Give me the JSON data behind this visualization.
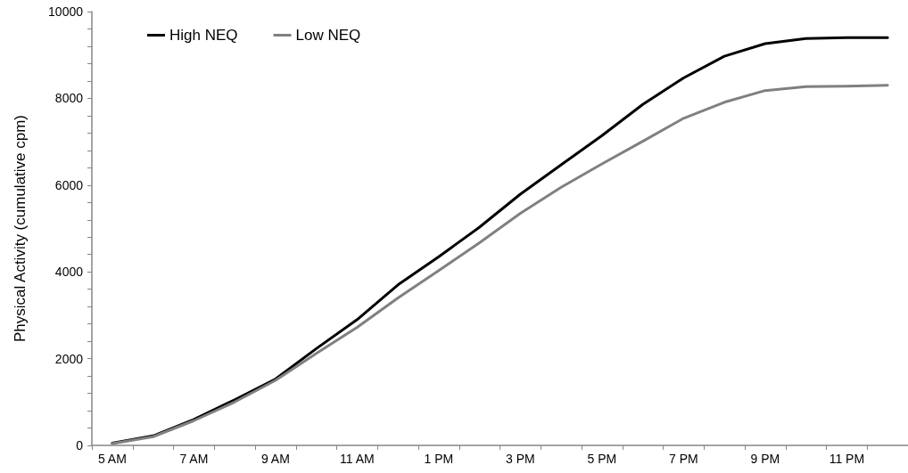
{
  "chart_data": {
    "type": "line",
    "ylabel": "Physical Activity (cumulative cpm)",
    "categories": [
      "5 AM",
      null,
      "7 AM",
      null,
      "9 AM",
      null,
      "11 AM",
      null,
      "1 PM",
      null,
      "3 PM",
      null,
      "5 PM",
      null,
      "7 PM",
      null,
      "9 PM",
      null,
      "11 PM",
      null
    ],
    "series": [
      {
        "name": "High NEQ",
        "color": "#000000",
        "values": [
          50,
          220,
          600,
          1050,
          1530,
          2230,
          2900,
          3700,
          4350,
          5030,
          5790,
          6470,
          7140,
          7860,
          8470,
          8970,
          9260,
          9380,
          9400,
          9400
        ]
      },
      {
        "name": "Low NEQ",
        "color": "#808080",
        "values": [
          40,
          200,
          570,
          1000,
          1500,
          2120,
          2720,
          3400,
          4030,
          4670,
          5350,
          5950,
          6490,
          7010,
          7540,
          7910,
          8180,
          8270,
          8280,
          8300
        ]
      }
    ],
    "ylim": [
      0,
      10000
    ],
    "yticks": [
      0,
      {
        "value": 400,
        "label": null
      },
      {
        "value": 800,
        "label": null
      },
      {
        "value": 1200,
        "label": null
      },
      {
        "value": 1600,
        "label": null
      },
      2000,
      {
        "value": 2400,
        "label": null
      },
      {
        "value": 2800,
        "label": null
      },
      {
        "value": 3200,
        "label": null
      },
      {
        "value": 3600,
        "label": null
      },
      4000,
      {
        "value": 4400,
        "label": null
      },
      {
        "value": 4800,
        "label": null
      },
      {
        "value": 5200,
        "label": null
      },
      {
        "value": 5600,
        "label": null
      },
      6000,
      {
        "value": 6400,
        "label": null
      },
      {
        "value": 6800,
        "label": null
      },
      {
        "value": 7200,
        "label": null
      },
      {
        "value": 7600,
        "label": null
      },
      8000,
      {
        "value": 8400,
        "label": null
      },
      {
        "value": 8800,
        "label": null
      },
      {
        "value": 9200,
        "label": null
      },
      {
        "value": 9600,
        "label": null
      },
      10000
    ],
    "grid": false,
    "legend": "top left",
    "marker": "none",
    "line_style": "solid"
  }
}
